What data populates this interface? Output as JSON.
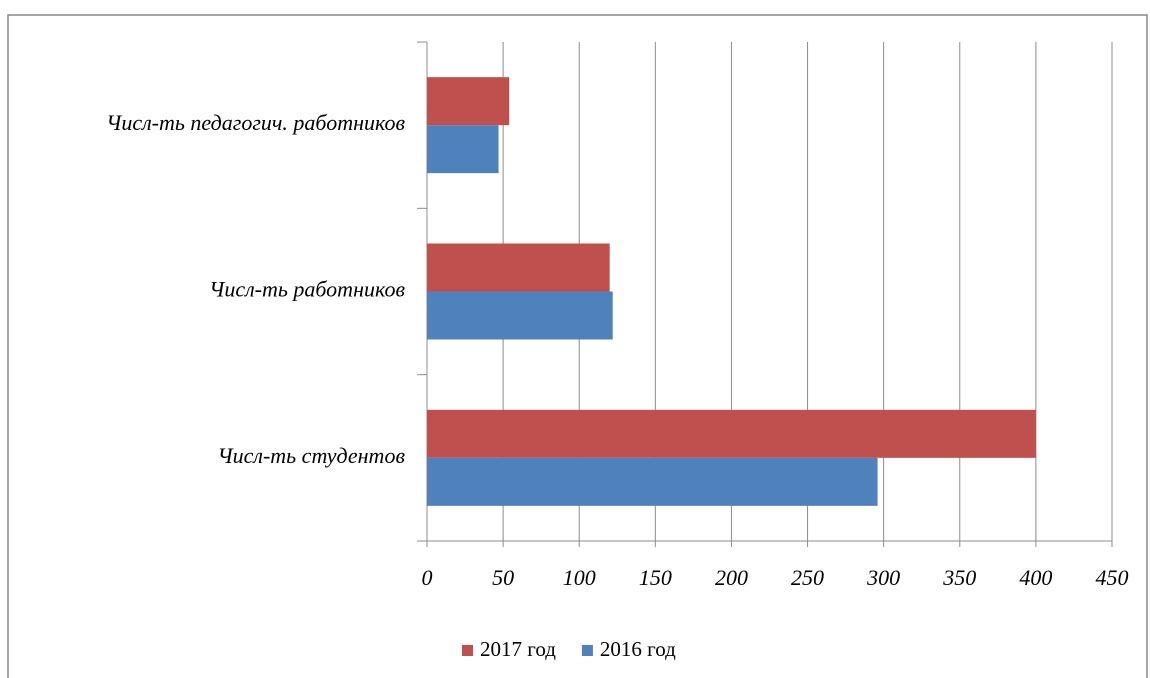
{
  "chart_data": {
    "type": "bar",
    "orientation": "horizontal",
    "categories": [
      "Числ-ть студентов",
      "Числ-ть работников",
      "Числ-ть педагогич. работников"
    ],
    "series": [
      {
        "name": "2017 год",
        "color": "#c0504d",
        "values": [
          400,
          120,
          54
        ]
      },
      {
        "name": "2016 год",
        "color": "#4f81bd",
        "values": [
          296,
          122,
          47
        ]
      }
    ],
    "xlim": [
      0,
      450
    ],
    "xticks": [
      0,
      50,
      100,
      150,
      200,
      250,
      300,
      350,
      400,
      450
    ],
    "grid": true,
    "legend": "bottom"
  }
}
